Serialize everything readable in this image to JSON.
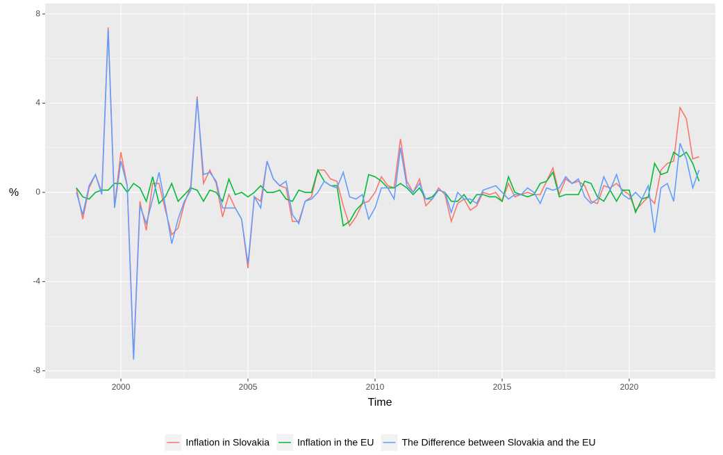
{
  "chart_data": {
    "type": "line",
    "x_label": "Time",
    "y_label": "%",
    "x": [
      1998.25,
      1998.5,
      1998.75,
      1999,
      1999.25,
      1999.5,
      1999.75,
      2000,
      2000.25,
      2000.5,
      2000.75,
      2001,
      2001.25,
      2001.5,
      2001.75,
      2002,
      2002.25,
      2002.5,
      2002.75,
      2003,
      2003.25,
      2003.5,
      2003.75,
      2004,
      2004.25,
      2004.5,
      2004.75,
      2005,
      2005.25,
      2005.5,
      2005.75,
      2006,
      2006.25,
      2006.5,
      2006.75,
      2007,
      2007.25,
      2007.5,
      2007.75,
      2008,
      2008.25,
      2008.5,
      2008.75,
      2009,
      2009.25,
      2009.5,
      2009.75,
      2010,
      2010.25,
      2010.5,
      2010.75,
      2011,
      2011.25,
      2011.5,
      2011.75,
      2012,
      2012.25,
      2012.5,
      2012.75,
      2013,
      2013.25,
      2013.5,
      2013.75,
      2014,
      2014.25,
      2014.5,
      2014.75,
      2015,
      2015.25,
      2015.5,
      2015.75,
      2016,
      2016.25,
      2016.5,
      2016.75,
      2017,
      2017.25,
      2017.5,
      2017.75,
      2018,
      2018.25,
      2018.5,
      2018.75,
      2019,
      2019.25,
      2019.5,
      2019.75,
      2020,
      2020.25,
      2020.5,
      2020.75,
      2021,
      2021.25,
      2021.5,
      2021.75,
      2022,
      2022.25,
      2022.5,
      2022.75
    ],
    "series": [
      {
        "name": "Inflation in Slovakia",
        "color": "#F8766D",
        "values": [
          0.2,
          -1.2,
          0.2,
          0.8,
          0.0,
          7.4,
          -0.6,
          1.8,
          0.3,
          -7.4,
          -0.4,
          -1.7,
          0.4,
          0.4,
          -0.8,
          -1.9,
          -1.6,
          -0.5,
          0.3,
          4.3,
          0.4,
          1.0,
          0.4,
          -1.1,
          -0.1,
          -0.7,
          -1.2,
          -3.4,
          -0.2,
          -0.4,
          1.4,
          0.6,
          0.3,
          0.2,
          -1.3,
          -1.3,
          -0.4,
          -0.2,
          1.0,
          1.0,
          0.6,
          0.5,
          -0.6,
          -1.5,
          -1.1,
          -0.5,
          -0.4,
          0.0,
          0.7,
          0.3,
          0.2,
          2.4,
          0.5,
          0.0,
          0.6,
          -0.6,
          -0.3,
          0.2,
          -0.1,
          -1.3,
          -0.5,
          -0.3,
          -0.8,
          -0.6,
          0.0,
          -0.1,
          0.0,
          -0.4,
          0.4,
          -0.2,
          -0.1,
          0.0,
          -0.1,
          -0.1,
          0.5,
          1.1,
          -0.1,
          0.6,
          0.4,
          0.5,
          0.3,
          -0.4,
          -0.5,
          0.3,
          0.2,
          0.4,
          0.1,
          -0.1,
          -0.8,
          -0.5,
          -0.2,
          -0.5,
          1.0,
          1.3,
          1.4,
          3.8,
          3.3,
          1.5,
          1.6
        ]
      },
      {
        "name": "Inflation in the EU",
        "color": "#00BA38",
        "values": [
          0.2,
          -0.2,
          -0.3,
          0.0,
          0.1,
          0.1,
          0.4,
          0.4,
          0.0,
          0.4,
          0.2,
          -0.4,
          0.7,
          -0.5,
          -0.2,
          0.4,
          -0.4,
          -0.1,
          0.2,
          0.1,
          -0.4,
          0.1,
          0.0,
          -0.4,
          0.6,
          -0.1,
          0.0,
          -0.2,
          0.0,
          0.3,
          0.0,
          0.0,
          0.1,
          -0.3,
          -0.4,
          0.1,
          0.0,
          0.0,
          1.0,
          0.5,
          0.3,
          0.3,
          -1.5,
          -1.3,
          -0.8,
          -0.5,
          0.8,
          0.7,
          0.5,
          0.2,
          0.2,
          0.4,
          0.2,
          -0.1,
          0.2,
          -0.3,
          -0.2,
          0.1,
          0.0,
          -0.4,
          -0.4,
          -0.1,
          -0.5,
          -0.1,
          -0.1,
          -0.2,
          -0.2,
          -0.4,
          0.7,
          0.0,
          -0.1,
          -0.2,
          -0.1,
          0.4,
          0.5,
          0.9,
          -0.2,
          -0.1,
          -0.1,
          -0.1,
          0.5,
          0.4,
          -0.2,
          -0.4,
          0.1,
          -0.4,
          0.1,
          0.1,
          -0.9,
          -0.3,
          -0.2,
          1.3,
          0.8,
          0.9,
          1.8,
          1.6,
          1.8,
          1.3,
          0.5
        ]
      },
      {
        "name": "The Difference between Slovakia and the EU",
        "color": "#619CFF",
        "values": [
          0.0,
          -1.0,
          0.3,
          0.8,
          -0.1,
          7.3,
          -0.7,
          1.4,
          0.3,
          -7.5,
          -0.6,
          -1.4,
          -0.3,
          0.9,
          -0.6,
          -2.3,
          -1.2,
          -0.4,
          0.1,
          4.2,
          0.8,
          0.9,
          0.5,
          -0.7,
          -0.7,
          -0.7,
          -1.2,
          -3.2,
          -0.2,
          -0.7,
          1.4,
          0.6,
          0.3,
          0.5,
          -1.0,
          -1.4,
          -0.4,
          -0.3,
          0.0,
          0.5,
          0.3,
          0.2,
          0.9,
          -0.2,
          -0.3,
          -0.1,
          -1.2,
          -0.7,
          0.2,
          0.2,
          -0.3,
          2.0,
          0.3,
          0.0,
          0.4,
          -0.3,
          -0.3,
          0.1,
          0.0,
          -0.9,
          0.0,
          -0.3,
          -0.3,
          -0.5,
          0.1,
          0.2,
          0.3,
          0.0,
          -0.3,
          -0.1,
          -0.1,
          0.2,
          0.0,
          -0.5,
          0.2,
          0.1,
          0.2,
          0.7,
          0.4,
          0.6,
          -0.2,
          -0.5,
          -0.3,
          0.7,
          0.1,
          0.8,
          -0.1,
          -0.3,
          0.0,
          -0.3,
          0.3,
          -1.8,
          0.2,
          0.4,
          -0.4,
          2.2,
          1.5,
          0.2,
          1.0
        ]
      }
    ],
    "xlim": [
      1997.02,
      2023.39
    ],
    "xticks": [
      2000,
      2005,
      2010,
      2015,
      2020
    ],
    "ylim": [
      -8.35,
      8.47
    ],
    "yticks": [
      -8,
      -4,
      0,
      4,
      8
    ],
    "grid": true,
    "legend_position": "bottom"
  }
}
